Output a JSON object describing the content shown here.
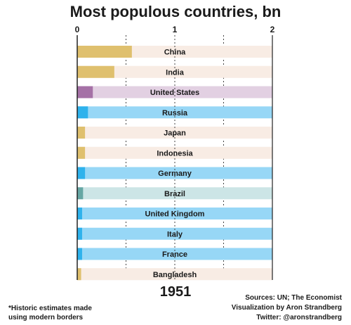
{
  "chart_data": {
    "type": "bar",
    "orientation": "horizontal",
    "title": "Most populous countries, bn",
    "xlim": [
      0,
      2
    ],
    "xticks": [
      "0",
      "1",
      "2"
    ],
    "grid": true,
    "categories": [
      "China",
      "India",
      "United States",
      "Russia",
      "Japan",
      "Indonesia",
      "Germany",
      "Brazil",
      "United Kingdom",
      "Italy",
      "France",
      "Bangladesh"
    ],
    "values": [
      0.56,
      0.38,
      0.16,
      0.11,
      0.08,
      0.08,
      0.08,
      0.06,
      0.05,
      0.05,
      0.05,
      0.04
    ],
    "bar_colors": [
      "#dfc06e",
      "#dfc06e",
      "#a571a6",
      "#2eb2ec",
      "#dfc06e",
      "#dfc06e",
      "#2eb2ec",
      "#66a7a4",
      "#2eb2ec",
      "#2eb2ec",
      "#2eb2ec",
      "#dfc06e"
    ],
    "track_colors": [
      "#f8ece4",
      "#f8ece4",
      "#e2d0e2",
      "#97d7f6",
      "#f8ece4",
      "#f8ece4",
      "#97d7f6",
      "#cce5e6",
      "#97d7f6",
      "#97d7f6",
      "#97d7f6",
      "#f8ece4"
    ]
  },
  "year": "1951",
  "footnote": [
    "*Historic estimates made",
    "using modern borders"
  ],
  "credits": [
    "Sources: UN; The Economist",
    "Visualization by Aron Strandberg",
    "Twitter: @aronstrandberg"
  ]
}
